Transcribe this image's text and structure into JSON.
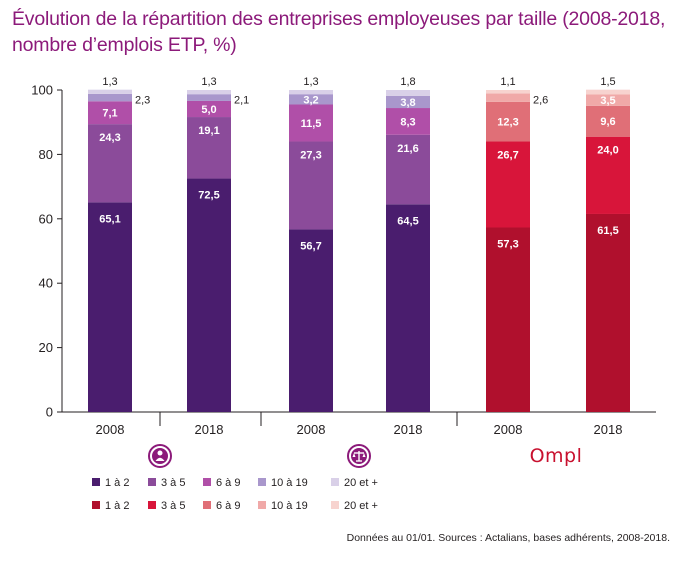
{
  "title": {
    "line1": "Évolution de la répartition des entreprises employeuses par taille (2008-2018,",
    "line2": "nombre d’emplois ETP, %)"
  },
  "source": "Données au 01/01. Sources : Actalians, bases adhérents, 2008-2018.",
  "brand": {
    "text": "Ompl",
    "color": "#c8102e"
  },
  "chart_data": {
    "type": "bar",
    "stacked": true,
    "ylim": [
      0,
      100
    ],
    "yticks": [
      0,
      20,
      40,
      60,
      80,
      100
    ],
    "categories": [
      "2008",
      "2018",
      "2008",
      "2018",
      "2008",
      "2018"
    ],
    "groups": [
      {
        "icon": "doctor-icon",
        "bars": [
          0,
          1
        ]
      },
      {
        "icon": "scales-icon",
        "bars": [
          2,
          3
        ]
      },
      {
        "icon": "ompl-logo",
        "bars": [
          4,
          5
        ]
      }
    ],
    "series_names": [
      "1 à 2",
      "3 à 5",
      "6 à 9",
      "10 à 19",
      "20 et +"
    ],
    "palettes": {
      "purple": [
        "#4a1d6e",
        "#8b4b9a",
        "#b04fa8",
        "#a997cc",
        "#d9d0e8"
      ],
      "red": [
        "#b0102d",
        "#d8153a",
        "#e06f77",
        "#f0a9a8",
        "#f7d3cf"
      ]
    },
    "bars": [
      {
        "palette": "purple",
        "values": [
          65.1,
          24.3,
          7.1,
          2.3,
          1.3
        ]
      },
      {
        "palette": "purple",
        "values": [
          72.5,
          19.1,
          5.0,
          2.1,
          1.3
        ]
      },
      {
        "palette": "purple",
        "values": [
          56.7,
          27.3,
          11.5,
          3.2,
          1.3
        ]
      },
      {
        "palette": "purple",
        "values": [
          64.5,
          21.6,
          8.3,
          3.8,
          1.8
        ]
      },
      {
        "palette": "red",
        "values": [
          57.3,
          26.7,
          12.3,
          2.6,
          1.1
        ]
      },
      {
        "palette": "red",
        "values": [
          61.5,
          24.0,
          9.6,
          3.5,
          1.5
        ]
      }
    ],
    "labels": [
      [
        "65,1",
        "24,3",
        "7,1",
        "2,3",
        "1,3"
      ],
      [
        "72,5",
        "19,1",
        "5,0",
        "2,1",
        "1,3"
      ],
      [
        "56,7",
        "27,3",
        "11,5",
        "3,2",
        "1,3"
      ],
      [
        "64,5",
        "21,6",
        "8,3",
        "3,8",
        "1,8"
      ],
      [
        "57,3",
        "26,7",
        "12,3",
        "2,6",
        "1,1"
      ],
      [
        "61,5",
        "24,0",
        "9,6",
        "3,5",
        "1,5"
      ]
    ],
    "legend": [
      {
        "palette": "purple",
        "entries": [
          "1 à 2",
          "3 à 5",
          "6 à 9",
          "10 à 19",
          "20 et +"
        ]
      },
      {
        "palette": "red",
        "entries": [
          "1 à 2",
          "3 à 5",
          "6 à 9",
          "10 à 19",
          "20 et +"
        ]
      }
    ],
    "grid": false,
    "legend_position": "bottom"
  }
}
